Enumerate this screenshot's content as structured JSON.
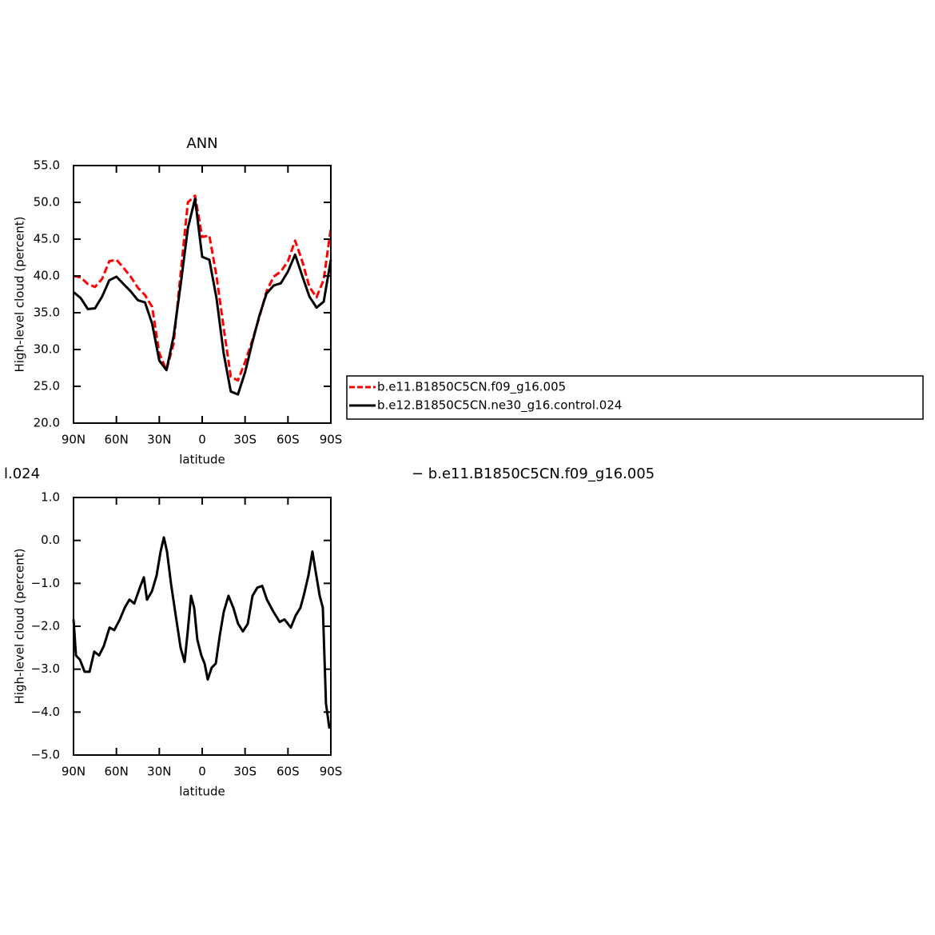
{
  "annotations": [
    "l.024",
    "− b.e11.B1850C5CN.f09_g16.005"
  ],
  "chart_data": [
    {
      "type": "line",
      "title": "ANN",
      "y_label": "High-level cloud (percent)",
      "x_label": "latitude",
      "xlim": [
        90,
        -90
      ],
      "ylim": [
        20,
        55
      ],
      "xticks": [
        {
          "value": 90,
          "label": "90N"
        },
        {
          "value": 60,
          "label": "60N"
        },
        {
          "value": 30,
          "label": "30N"
        },
        0,
        {
          "value": -30,
          "label": "30S"
        },
        {
          "value": -60,
          "label": "60S"
        },
        {
          "value": -90,
          "label": "90S"
        }
      ],
      "yticks": [
        {
          "value": 20,
          "label": "20.0"
        },
        {
          "value": 25,
          "label": "25.0"
        },
        {
          "value": 30,
          "label": "30.0"
        },
        {
          "value": 35,
          "label": "35.0"
        },
        {
          "value": 40,
          "label": "40.0"
        },
        {
          "value": 45,
          "label": "45.0"
        },
        {
          "value": 50,
          "label": "50.0"
        },
        {
          "value": 55,
          "label": "55.0"
        }
      ],
      "legend": "right",
      "x": [
        90,
        85,
        80,
        75,
        70,
        65,
        60,
        55,
        50,
        45,
        40,
        35,
        30,
        25,
        20,
        15,
        10,
        5,
        0,
        -5,
        -10,
        -15,
        -20,
        -25,
        -30,
        -35,
        -40,
        -45,
        -50,
        -55,
        -60,
        -65,
        -70,
        -75,
        -80,
        -85,
        -90
      ],
      "series": [
        {
          "name": "b.e11.B1850C5CN.f09_g16.005",
          "color": "#ff0000",
          "line_style": "dashed",
          "values": [
            40.0,
            39.8,
            38.9,
            38.5,
            39.6,
            42.0,
            42.2,
            41.1,
            39.9,
            38.4,
            37.4,
            35.8,
            29.5,
            27.2,
            30.8,
            40.5,
            50.0,
            50.9,
            45.3,
            45.5,
            40.0,
            33.0,
            26.3,
            25.8,
            28.3,
            31.2,
            34.4,
            37.9,
            39.9,
            40.6,
            42.0,
            44.8,
            42.0,
            38.5,
            37.1,
            39.5,
            46.5
          ]
        },
        {
          "name": "b.e12.B1850C5CN.ne30_g16.control.024",
          "color": "#000000",
          "line_style": "solid",
          "values": [
            37.8,
            37.0,
            35.5,
            35.6,
            37.2,
            39.4,
            39.9,
            38.9,
            37.9,
            36.7,
            36.4,
            33.5,
            28.5,
            27.2,
            31.8,
            38.9,
            46.5,
            50.5,
            42.6,
            42.2,
            37.0,
            29.5,
            24.3,
            23.9,
            26.9,
            30.9,
            34.6,
            37.6,
            38.7,
            39.0,
            40.6,
            42.9,
            40.0,
            37.2,
            35.7,
            36.5,
            42.2
          ]
        }
      ]
    },
    {
      "type": "line",
      "y_label": "High-level cloud (percent)",
      "x_label": "latitude",
      "xlim": [
        90,
        -90
      ],
      "ylim": [
        -5,
        1
      ],
      "xticks": [
        {
          "value": 90,
          "label": "90N"
        },
        {
          "value": 60,
          "label": "60N"
        },
        {
          "value": 30,
          "label": "30N"
        },
        0,
        {
          "value": -30,
          "label": "30S"
        },
        {
          "value": -60,
          "label": "60S"
        },
        {
          "value": -90,
          "label": "90S"
        }
      ],
      "yticks": [
        {
          "value": -5,
          "label": "−5.0"
        },
        {
          "value": -4,
          "label": "−4.0"
        },
        {
          "value": -3,
          "label": "−3.0"
        },
        {
          "value": -2,
          "label": "−2.0"
        },
        {
          "value": -1,
          "label": "−1.0"
        },
        {
          "value": 0,
          "label": "0.0"
        },
        {
          "value": 1,
          "label": "1.0"
        }
      ],
      "color": "#000000",
      "x": [
        90,
        88.3,
        85.5,
        82.2,
        78.8,
        75.5,
        72.1,
        68.8,
        64.8,
        61.5,
        57.6,
        54.2,
        50.9,
        47.5,
        43.6,
        40.8,
        38.6,
        35.2,
        31.9,
        29.1,
        26.8,
        24.6,
        21.8,
        18.5,
        15.1,
        12.3,
        10.1,
        7.8,
        5.6,
        3.4,
        0.6,
        -1.7,
        -3.9,
        -6.7,
        -9.5,
        -12.3,
        -15.1,
        -18.4,
        -21.8,
        -25.1,
        -28.5,
        -31.9,
        -35.2,
        -38.6,
        -42,
        -45.3,
        -49.8,
        -54.2,
        -57.6,
        -62,
        -65.4,
        -68.7,
        -71,
        -74.3,
        -77.1,
        -79.4,
        -82.2,
        -84.4,
        -86.6,
        -88.9,
        -90
      ],
      "values": [
        -1.84,
        -2.68,
        -2.78,
        -3.06,
        -3.06,
        -2.59,
        -2.68,
        -2.46,
        -2.03,
        -2.09,
        -1.84,
        -1.57,
        -1.38,
        -1.47,
        -1.1,
        -0.86,
        -1.38,
        -1.19,
        -0.82,
        -0.26,
        0.07,
        -0.26,
        -1.01,
        -1.75,
        -2.5,
        -2.83,
        -2.12,
        -1.29,
        -1.57,
        -2.31,
        -2.68,
        -2.87,
        -3.24,
        -2.96,
        -2.87,
        -2.22,
        -1.66,
        -1.29,
        -1.57,
        -1.94,
        -2.12,
        -1.94,
        -1.29,
        -1.1,
        -1.06,
        -1.38,
        -1.66,
        -1.9,
        -1.84,
        -2.03,
        -1.75,
        -1.57,
        -1.29,
        -0.82,
        -0.26,
        -0.73,
        -1.29,
        -1.57,
        -3.8,
        -4.36,
        -4.36
      ]
    }
  ]
}
